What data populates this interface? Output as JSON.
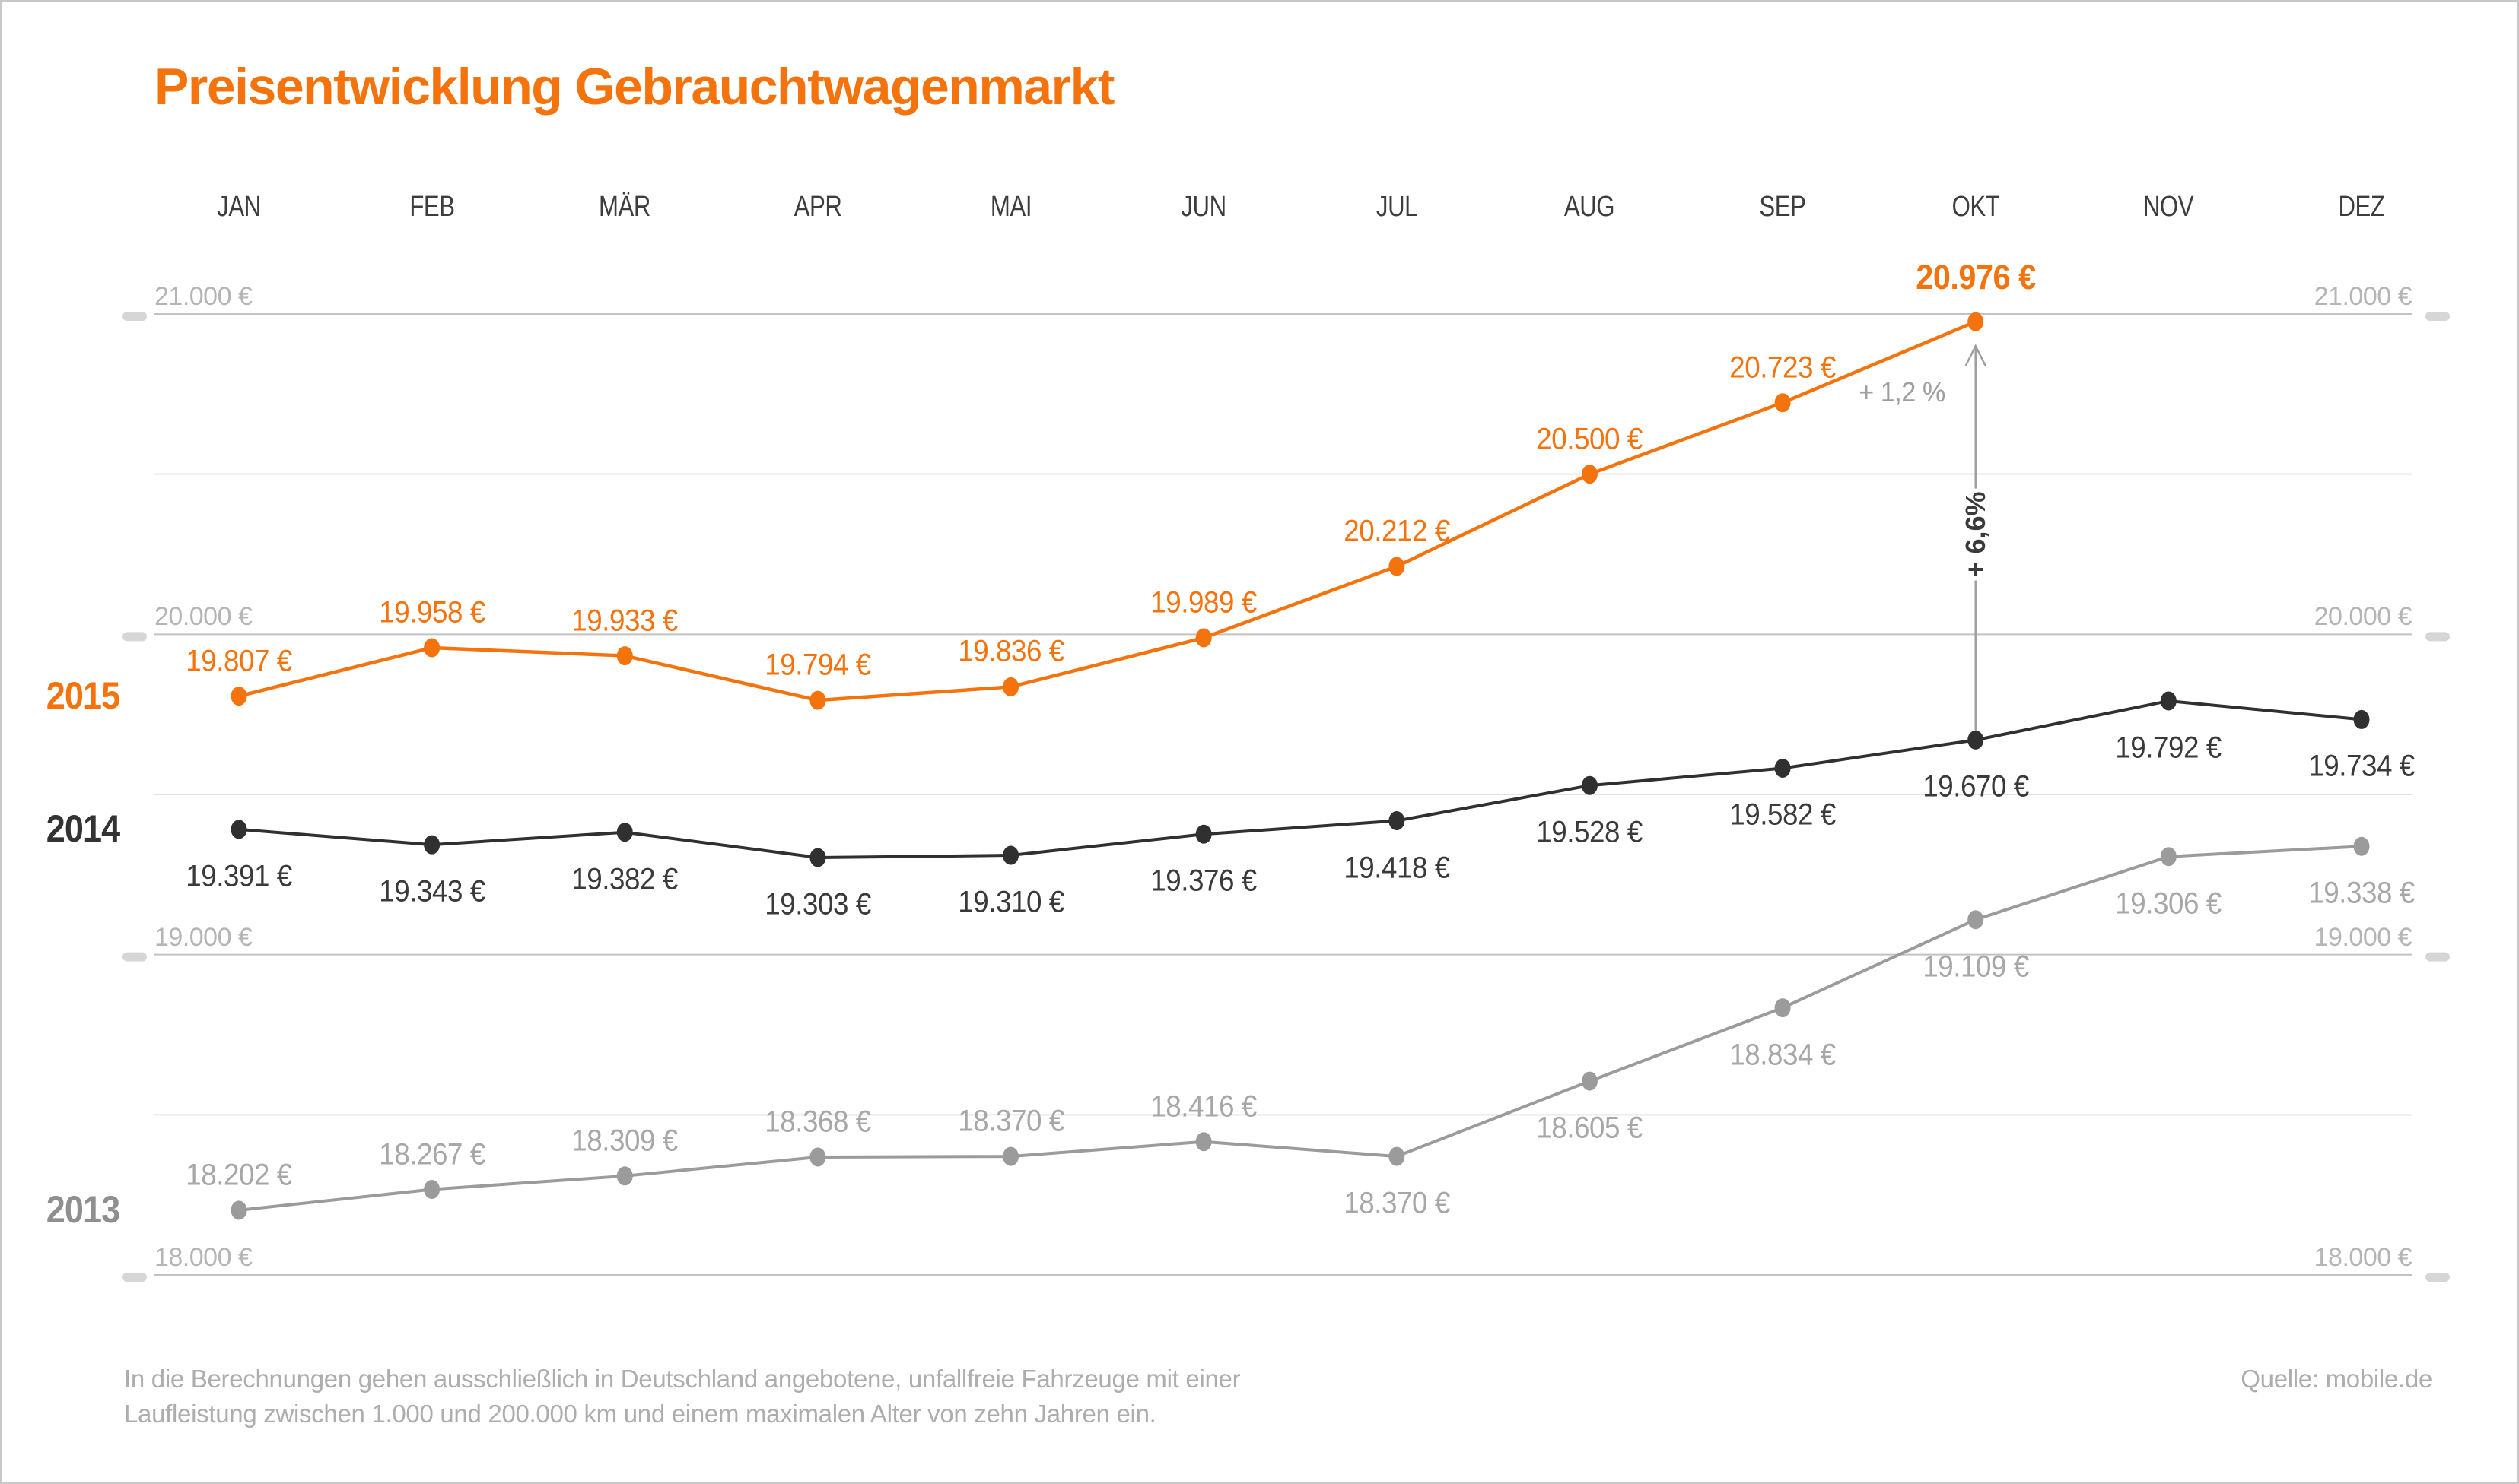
{
  "title": "Preisentwicklung Gebrauchtwagenmarkt",
  "source": "Quelle: mobile.de",
  "footnote": [
    "In die Berechnungen gehen ausschließlich in Deutschland angebotene, unfallfreie Fahrzeuge mit einer",
    "Laufleistung zwischen 1.000 und 200.000 km und einem maximalen Alter von zehn Jahren ein."
  ],
  "colors": {
    "accent": "#F5730D",
    "dark": "#333333",
    "gray_series": "#9B9B9B",
    "gray_series_label": "#A7A7A7",
    "year_2013": "#8F8F8F",
    "axis_label": "#B5B5B5",
    "grid_major": "#C2C2C2",
    "grid_minor": "#E3E3E3",
    "tick": "#D6D6D6",
    "note": "#9E9E9E",
    "arrow": "#9E9E9E",
    "border": "#C8C8C8"
  },
  "chart_data": {
    "type": "line",
    "title": "Preisentwicklung Gebrauchtwagenmarkt",
    "x_categories": [
      "JAN",
      "FEB",
      "MÄR",
      "APR",
      "MAI",
      "JUN",
      "JUL",
      "AUG",
      "SEP",
      "OKT",
      "NOV",
      "DEZ"
    ],
    "ylim": [
      18000,
      21000
    ],
    "grid": "horizontal-every-500",
    "y_major_ticks": [
      {
        "value": 21000,
        "label": "21.000 €"
      },
      {
        "value": 20000,
        "label": "20.000 €"
      },
      {
        "value": 19000,
        "label": "19.000 €"
      },
      {
        "value": 18000,
        "label": "18.000 €"
      }
    ],
    "y_minor_ticks": [
      20500,
      19500,
      18500
    ],
    "legend_position": "left-year-labels",
    "series": [
      {
        "name": "2013",
        "color": "#9B9B9B",
        "label_color": "#A7A7A7",
        "values": [
          18202,
          18267,
          18309,
          18368,
          18370,
          18416,
          18370,
          18605,
          18834,
          19109,
          19306,
          19338
        ],
        "point_labels": [
          "18.202 €",
          "18.267 €",
          "18.309 €",
          "18.368 €",
          "18.370 €",
          "18.416 €",
          "18.370 €",
          "18.605 €",
          "18.834 €",
          "19.109 €",
          "19.306 €",
          "19.338 €"
        ],
        "label_side": [
          "above",
          "above",
          "above",
          "above",
          "above",
          "above",
          "below",
          "below",
          "below",
          "below",
          "below",
          "below"
        ],
        "emphasize_last": false
      },
      {
        "name": "2014",
        "color": "#303030",
        "label_color": "#3A3A3A",
        "values": [
          19391,
          19343,
          19382,
          19303,
          19310,
          19376,
          19418,
          19528,
          19582,
          19670,
          19792,
          19734
        ],
        "point_labels": [
          "19.391 €",
          "19.343 €",
          "19.382 €",
          "19.303 €",
          "19.310 €",
          "19.376 €",
          "19.418 €",
          "19.528 €",
          "19.582 €",
          "19.670 €",
          "19.792 €",
          "19.734 €"
        ],
        "label_side": [
          "below",
          "below",
          "below",
          "below",
          "below",
          "below",
          "below",
          "below",
          "below",
          "below",
          "below",
          "below"
        ],
        "emphasize_last": false
      },
      {
        "name": "2015",
        "color": "#F5730D",
        "label_color": "#F5730D",
        "values": [
          19807,
          19958,
          19933,
          19794,
          19836,
          19989,
          20212,
          20500,
          20723,
          20976
        ],
        "point_labels": [
          "19.807 €",
          "19.958 €",
          "19.933 €",
          "19.794 €",
          "19.836 €",
          "19.989 €",
          "20.212 €",
          "20.500 €",
          "20.723 €",
          "20.976 €"
        ],
        "label_side": [
          "above",
          "above",
          "above",
          "above",
          "above",
          "above",
          "above",
          "above",
          "above",
          "above"
        ],
        "emphasize_last": true
      }
    ],
    "annotations": [
      {
        "id": "month-change-note",
        "text": "+ 1,2 %",
        "near": "SEP-OKT 2015"
      },
      {
        "id": "year-change-arrow",
        "text": "+ 6,6%",
        "rotated": true,
        "arrow_month": "OKT",
        "from_series": "2014",
        "to_series": "2015"
      }
    ]
  }
}
